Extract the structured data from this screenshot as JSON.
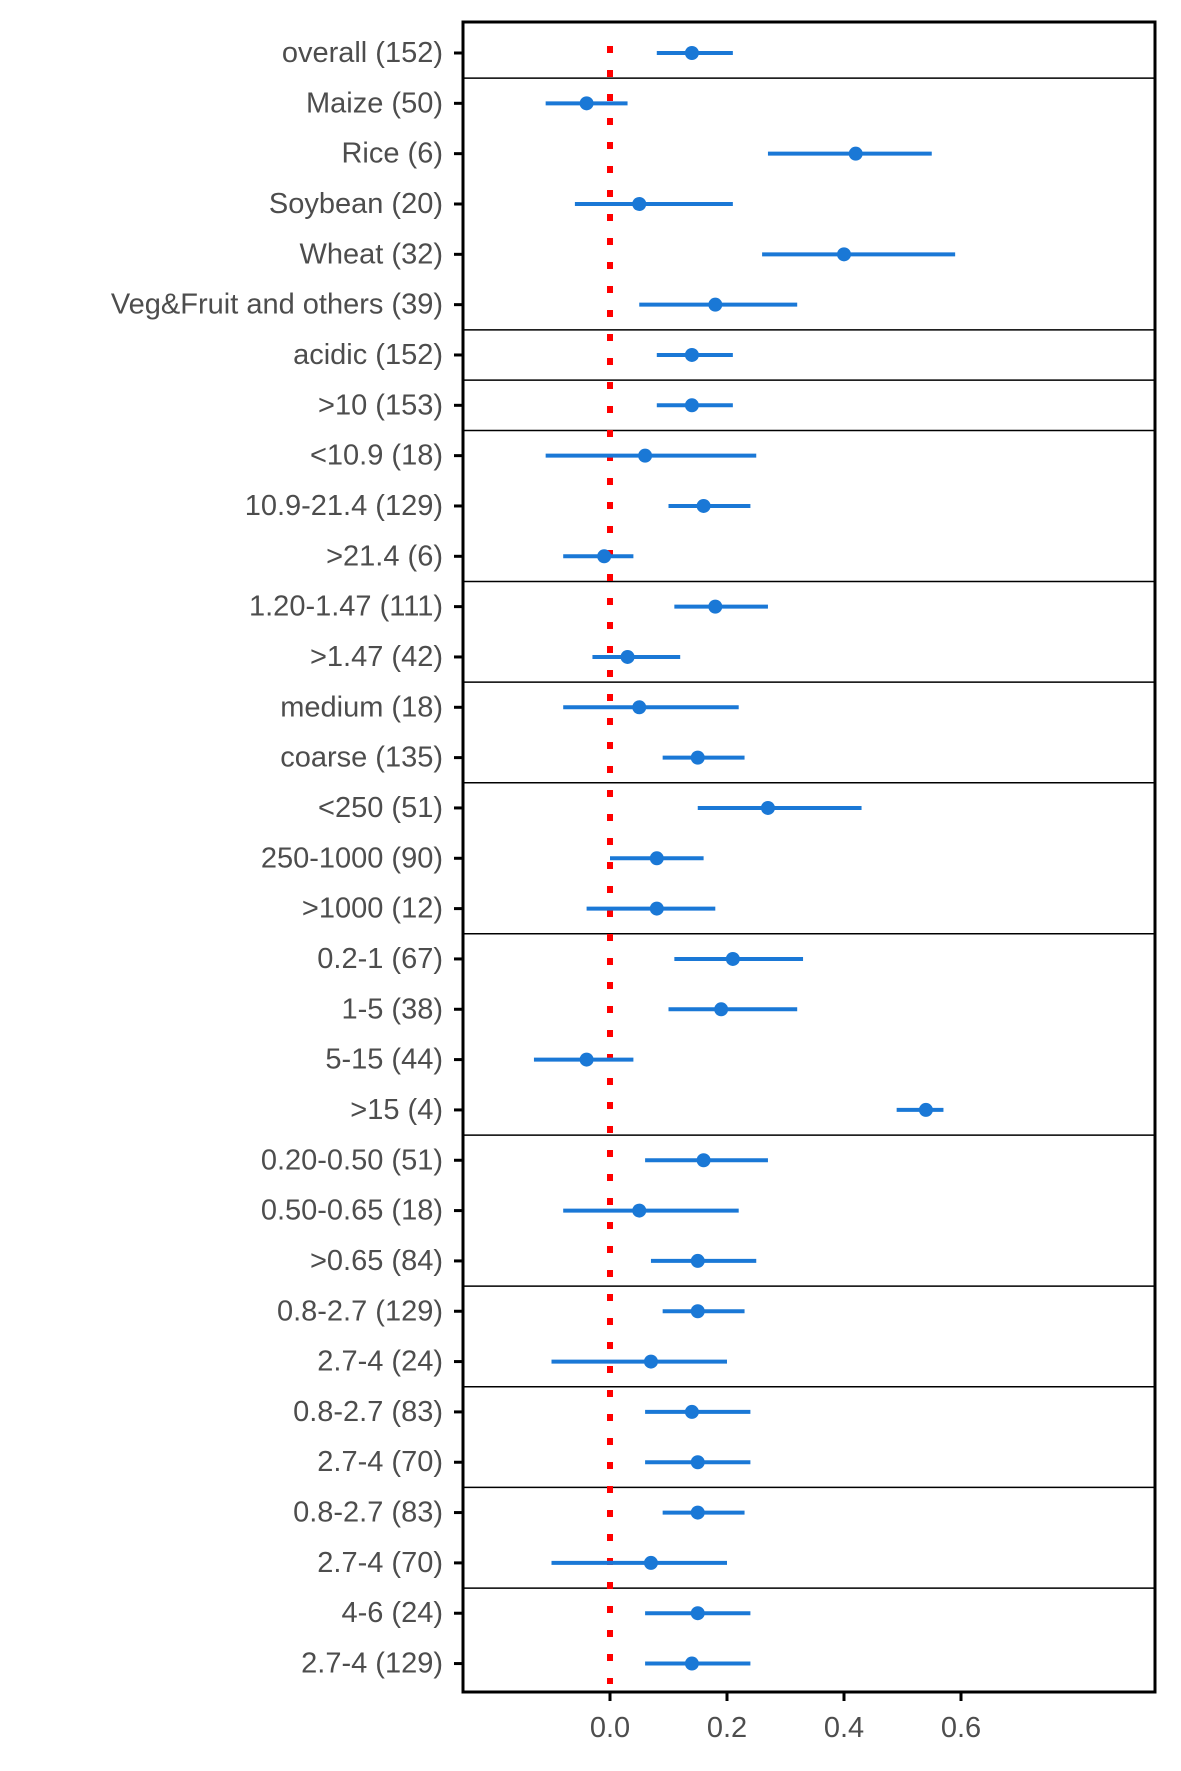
{
  "chart_data": {
    "type": "forest",
    "title": "",
    "xlabel": "",
    "ylabel": "",
    "xlim": [
      -0.15,
      0.62
    ],
    "x_ticks": [
      0.0,
      0.2,
      0.4,
      0.6
    ],
    "x_tick_labels": [
      "0.0",
      "0.2",
      "0.4",
      "0.6"
    ],
    "reference_line": {
      "x": 0,
      "style": "dotted",
      "color": "#ff0000"
    },
    "colors": {
      "point": "#1a78d6",
      "reference": "#ff0000",
      "axis": "#000000",
      "text": "#4d4d4d"
    },
    "groups": [
      {
        "rows": [
          {
            "label": "overall (152)",
            "estimate": 0.14,
            "lower": 0.08,
            "upper": 0.21
          }
        ]
      },
      {
        "rows": [
          {
            "label": "Maize (50)",
            "estimate": -0.04,
            "lower": -0.11,
            "upper": 0.03
          },
          {
            "label": "Rice (6)",
            "estimate": 0.42,
            "lower": 0.27,
            "upper": 0.55
          },
          {
            "label": "Soybean (20)",
            "estimate": 0.05,
            "lower": -0.06,
            "upper": 0.21
          },
          {
            "label": "Wheat (32)",
            "estimate": 0.4,
            "lower": 0.26,
            "upper": 0.59
          },
          {
            "label": "Veg&Fruit and others (39)",
            "estimate": 0.18,
            "lower": 0.05,
            "upper": 0.32
          }
        ]
      },
      {
        "rows": [
          {
            "label": "acidic (152)",
            "estimate": 0.14,
            "lower": 0.08,
            "upper": 0.21
          }
        ]
      },
      {
        "rows": [
          {
            "label": ">10 (153)",
            "estimate": 0.14,
            "lower": 0.08,
            "upper": 0.21
          }
        ]
      },
      {
        "rows": [
          {
            "label": "<10.9 (18)",
            "estimate": 0.06,
            "lower": -0.11,
            "upper": 0.25
          },
          {
            "label": "10.9-21.4 (129)",
            "estimate": 0.16,
            "lower": 0.1,
            "upper": 0.24
          },
          {
            "label": ">21.4 (6)",
            "estimate": -0.01,
            "lower": -0.08,
            "upper": 0.04
          }
        ]
      },
      {
        "rows": [
          {
            "label": "1.20-1.47 (111)",
            "estimate": 0.18,
            "lower": 0.11,
            "upper": 0.27
          },
          {
            "label": ">1.47 (42)",
            "estimate": 0.03,
            "lower": -0.03,
            "upper": 0.12
          }
        ]
      },
      {
        "rows": [
          {
            "label": "medium (18)",
            "estimate": 0.05,
            "lower": -0.08,
            "upper": 0.22
          },
          {
            "label": "coarse (135)",
            "estimate": 0.15,
            "lower": 0.09,
            "upper": 0.23
          }
        ]
      },
      {
        "rows": [
          {
            "label": "<250 (51)",
            "estimate": 0.27,
            "lower": 0.15,
            "upper": 0.43
          },
          {
            "label": "250-1000 (90)",
            "estimate": 0.08,
            "lower": 0.0,
            "upper": 0.16
          },
          {
            "label": ">1000 (12)",
            "estimate": 0.08,
            "lower": -0.04,
            "upper": 0.18
          }
        ]
      },
      {
        "rows": [
          {
            "label": "0.2-1 (67)",
            "estimate": 0.21,
            "lower": 0.11,
            "upper": 0.33
          },
          {
            "label": "1-5 (38)",
            "estimate": 0.19,
            "lower": 0.1,
            "upper": 0.32
          },
          {
            "label": "5-15 (44)",
            "estimate": -0.04,
            "lower": -0.13,
            "upper": 0.04
          },
          {
            "label": ">15 (4)",
            "estimate": 0.54,
            "lower": 0.49,
            "upper": 0.57
          }
        ]
      },
      {
        "rows": [
          {
            "label": "0.20-0.50 (51)",
            "estimate": 0.16,
            "lower": 0.06,
            "upper": 0.27
          },
          {
            "label": "0.50-0.65 (18)",
            "estimate": 0.05,
            "lower": -0.08,
            "upper": 0.22
          },
          {
            "label": ">0.65 (84)",
            "estimate": 0.15,
            "lower": 0.07,
            "upper": 0.25
          }
        ]
      },
      {
        "rows": [
          {
            "label": "0.8-2.7 (129)",
            "estimate": 0.15,
            "lower": 0.09,
            "upper": 0.23
          },
          {
            "label": "2.7-4 (24)",
            "estimate": 0.07,
            "lower": -0.1,
            "upper": 0.2
          }
        ]
      },
      {
        "rows": [
          {
            "label": "0.8-2.7 (83)",
            "estimate": 0.14,
            "lower": 0.06,
            "upper": 0.24
          },
          {
            "label": "2.7-4 (70)",
            "estimate": 0.15,
            "lower": 0.06,
            "upper": 0.24
          }
        ]
      },
      {
        "rows": [
          {
            "label": "0.8-2.7 (83)",
            "estimate": 0.15,
            "lower": 0.09,
            "upper": 0.23
          },
          {
            "label": "2.7-4 (70)",
            "estimate": 0.07,
            "lower": -0.1,
            "upper": 0.2
          }
        ]
      },
      {
        "rows": [
          {
            "label": "4-6 (24)",
            "estimate": 0.15,
            "lower": 0.06,
            "upper": 0.24
          },
          {
            "label": "2.7-4 (129)",
            "estimate": 0.14,
            "lower": 0.06,
            "upper": 0.24
          }
        ]
      }
    ]
  }
}
